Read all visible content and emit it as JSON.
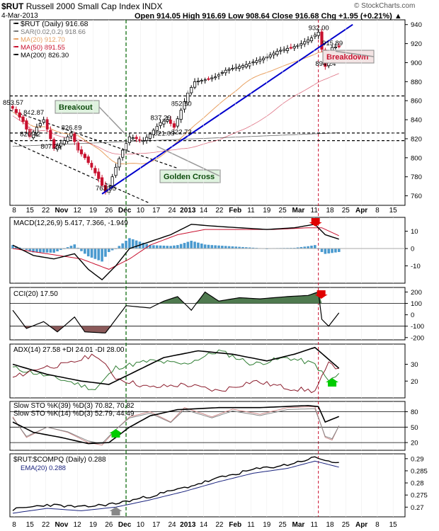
{
  "header": {
    "symbol": "$RUT",
    "name": "Russell 2000 Small Cap Index",
    "exchange": "INDX",
    "date": "4-Mar-2013",
    "ohlc": "Open 914.05  High 916.69  Low 908.64  Close 916.68  Chg +1.95 (+0.21%) ▲",
    "watermark": "© StockCharts.com"
  },
  "colors": {
    "up": "#000000",
    "down": "#c8102e",
    "sma20": "#e8a060",
    "sma50": "#c8102e",
    "sma200": "#000000",
    "trend": "#0000cc",
    "macd_hist": "#4a9acf",
    "cci_fill": "#4f7a4f",
    "cci_neg": "#8b5a5a",
    "green_line": "#006600",
    "red_line": "#c8102e",
    "label_bg": "#1f4f1f"
  },
  "chart_data": [
    {
      "type": "candlestick",
      "title": "$RUT (Daily) 916.68",
      "legend": [
        {
          "label": "$RUT (Daily) 916.68",
          "color": "#000000"
        },
        {
          "label": "SAR(0.02,0.2) 918.66",
          "color": "#777777"
        },
        {
          "label": "MA(20) 912.70",
          "color": "#e8a060"
        },
        {
          "label": "MA(50) 891.55",
          "color": "#c8102e"
        },
        {
          "label": "MA(200) 826.30",
          "color": "#000000"
        }
      ],
      "ylim": [
        750,
        945
      ],
      "yticks": [
        760,
        780,
        800,
        820,
        840,
        860,
        880,
        900,
        920,
        940
      ],
      "price_labels": [
        {
          "text": "853.57",
          "i": 0,
          "v": 853.57
        },
        {
          "text": "842.87",
          "i": 6,
          "v": 842.87
        },
        {
          "text": "820.42",
          "i": 5,
          "v": 820.42
        },
        {
          "text": "807.24",
          "i": 11,
          "v": 807.24
        },
        {
          "text": "826.89",
          "i": 17,
          "v": 826.89
        },
        {
          "text": "763.55",
          "i": 27,
          "v": 763.55
        },
        {
          "text": "821.03",
          "i": 44,
          "v": 821.03
        },
        {
          "text": "822.73",
          "i": 49,
          "v": 822.73
        },
        {
          "text": "837.29",
          "i": 43,
          "v": 837.29
        },
        {
          "text": "852.50",
          "i": 49,
          "v": 852.5
        },
        {
          "text": "932.00",
          "i": 89,
          "v": 932.0
        },
        {
          "text": "915.89",
          "i": 93,
          "v": 915.89
        },
        {
          "text": "894.24",
          "i": 91,
          "v": 894.24
        }
      ],
      "annotations": [
        "Breakout",
        "Golden Cross",
        "Breakdown"
      ],
      "hlines": [
        865,
        826,
        818
      ]
    },
    {
      "type": "line",
      "title": "MACD(12,26,9) 5.417, 7.366, -1.949",
      "values": [
        "5.417",
        "7.366",
        "-1.949"
      ],
      "ylim": [
        -20,
        18
      ],
      "yticks": [
        -10,
        0,
        10
      ]
    },
    {
      "type": "area",
      "title": "CCI(20) 17.50",
      "ylim": [
        -220,
        240
      ],
      "yticks": [
        -200,
        -100,
        0,
        100,
        200
      ],
      "hlines": [
        100,
        -100
      ]
    },
    {
      "type": "line",
      "title": "ADX(14) 27.58  +DI 24.01  -DI 28.00",
      "values": [
        "27.58",
        "24.01",
        "28.00"
      ],
      "ylim": [
        10,
        42
      ],
      "yticks": [
        20,
        30
      ]
    },
    {
      "type": "line",
      "title": "Slow STO %K(39) %D(3) 70.82, 70.82",
      "title2": "Slow STO %K(14) %D(3) 52.79, 44.49",
      "values": [
        "70.82",
        "70.82",
        "52.79",
        "44.49"
      ],
      "ylim": [
        5,
        100
      ],
      "yticks": [
        20,
        50,
        80
      ],
      "hlines": [
        80,
        50,
        20
      ]
    },
    {
      "type": "line",
      "title": "$RUT:$COMPQ (Daily) 0.288",
      "legend2": "EMA(20) 0.288",
      "ylim": [
        0.266,
        0.292
      ],
      "yticks": [
        0.27,
        0.275,
        0.28,
        0.285,
        0.29
      ]
    }
  ],
  "xaxis": {
    "labels": [
      "8",
      "15",
      "22",
      "Nov",
      "12",
      "19",
      "26",
      "Dec",
      "10",
      "17",
      "24",
      "2013",
      "14",
      "22",
      "Feb",
      "11",
      "19",
      "25",
      "Mar",
      "11",
      "18",
      "25",
      "Apr",
      "8",
      "15"
    ],
    "bold": [
      "Nov",
      "Dec",
      "2013",
      "Feb",
      "Mar",
      "Apr"
    ]
  }
}
